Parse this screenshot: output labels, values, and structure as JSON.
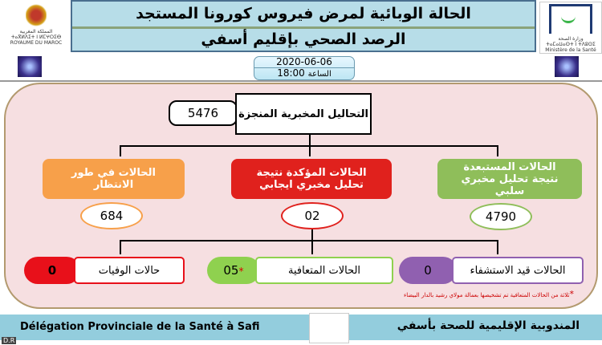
{
  "header": {
    "title": "الحالة الوبائية لمرض فيروس كورونا المستجد",
    "subtitle": "الرصد الصحي بإقليم أسفي"
  },
  "logo_left": {
    "line1": "المملكة المغربية",
    "line2": "ⵜⴰⴳⵍⴷⵉⵜ ⵏ ⵍⵎⵖⵔⵉⴱ",
    "line3": "ROYAUME DU MAROC"
  },
  "logo_right": {
    "line1": "وزارة الصحة",
    "line2": "ⵜⴰⵎⴰⵡⴰⵙⵜ ⵏ ⵜⴷⵓⵙⵉ",
    "line3": "Ministère de la Santé"
  },
  "date": {
    "date": "2020-06-06",
    "time_label": "الساعة",
    "time": "18:00"
  },
  "tests": {
    "label": "التحاليل المخبرية المنجزة",
    "value": "5476"
  },
  "waiting": {
    "label": "الحالات في طور الانتظار",
    "value": "684",
    "color": "#f7a04a"
  },
  "confirmed": {
    "label": "الحالات المؤكدة نتيجة تحليل مخبري ايجابي",
    "value": "02",
    "color": "#e0211d"
  },
  "excluded": {
    "label": "الحالات المستبعدة نتيجة تحليل مخبري سلبي",
    "value": "4790",
    "color": "#8fbe5a"
  },
  "deaths": {
    "label": "حالات الوفيات",
    "value": "0",
    "color": "#e8101a"
  },
  "recovered": {
    "label": "الحالات المتعافية",
    "value": "05",
    "marker": "*",
    "color": "#8fd14f"
  },
  "hospitalized": {
    "label": "الحالات قيد الاستشفاء",
    "value": "0",
    "color": "#9060b0"
  },
  "footnote": {
    "marker": "*",
    "text": "ثلاثة من الحالات المتعافية تم تشخيصها بعمالة مولاي رشيد بالدار البيضاء"
  },
  "footer": {
    "left": "Délégation Provinciale de la Santé à Safi",
    "right": "المندوبية الإقليمية للصحة بأسفي"
  },
  "copyright": "D.R"
}
